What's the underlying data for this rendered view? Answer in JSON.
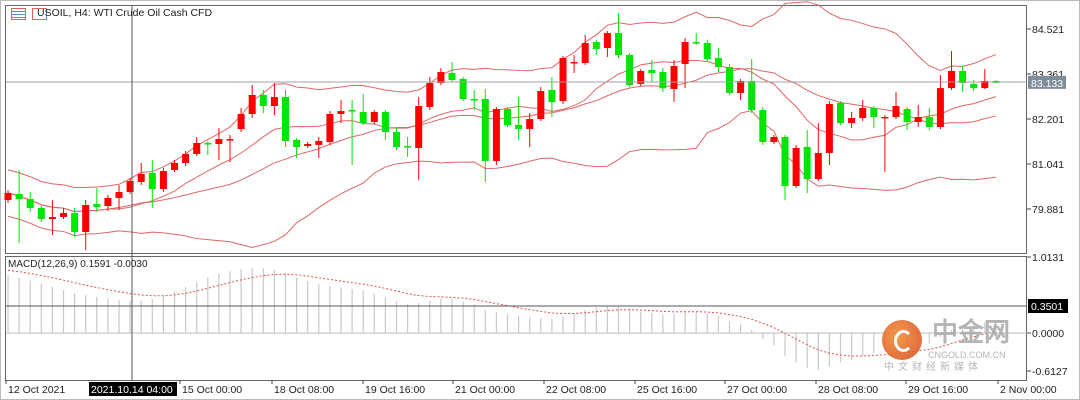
{
  "header": {
    "symbol_title": "USOIL, H4:  WTI Crude Oil Cash CFD"
  },
  "colors": {
    "bull": "#ff0000",
    "bear": "#00e600",
    "bands": "#e06666",
    "macd_hist": "#c8c8c8",
    "signal": "#e05050",
    "grid_line": "#999999",
    "bid_tag": "#7f8c9a"
  },
  "icons": [
    "chart-list-icon",
    "chart-template-icon"
  ],
  "price_axis": {
    "ticks": [
      "84.521",
      "83.361",
      "82.201",
      "81.041",
      "79.881"
    ],
    "bid": "83.133"
  },
  "macd": {
    "label": "MACD(12,26,9) 0.1591 -0.0030",
    "ticks": [
      "1.0131",
      "0.0000",
      "-0.6127"
    ],
    "crosshair_value": "0.3501",
    "main": [
      0.75,
      0.72,
      0.68,
      0.64,
      0.6,
      0.56,
      0.52,
      0.49,
      0.47,
      0.45,
      0.43,
      0.42,
      0.42,
      0.44,
      0.48,
      0.54,
      0.6,
      0.66,
      0.72,
      0.77,
      0.8,
      0.83,
      0.84,
      0.84,
      0.82,
      0.78,
      0.72,
      0.67,
      0.63,
      0.61,
      0.59,
      0.57,
      0.55,
      0.51,
      0.46,
      0.41,
      0.37,
      0.39,
      0.42,
      0.45,
      0.44,
      0.41,
      0.37,
      0.3,
      0.27,
      0.25,
      0.22,
      0.2,
      0.19,
      0.18,
      0.22,
      0.26,
      0.3,
      0.33,
      0.35,
      0.34,
      0.31,
      0.28,
      0.26,
      0.24,
      0.25,
      0.28,
      0.28,
      0.25,
      0.22,
      0.15,
      0.11,
      0.04,
      -0.08,
      -0.16,
      -0.3,
      -0.38,
      -0.45,
      -0.48,
      -0.43,
      -0.38,
      -0.35,
      -0.3,
      -0.26,
      -0.24,
      -0.2,
      -0.18,
      -0.16,
      -0.14,
      -0.05,
      0.04,
      0.09,
      0.12,
      0.14,
      0.1591
    ]
  },
  "time_axis": {
    "labels": [
      "12 Oct 2021",
      "15 Oct 00:00",
      "18 Oct 08:00",
      "19 Oct 16:00",
      "21 Oct 00:00",
      "22 Oct 08:00",
      "25 Oct 16:00",
      "27 Oct 00:00",
      "28 Oct 08:00",
      "29 Oct 16:00",
      "2 Nov 00:00"
    ],
    "crosshair_time": "2021.10.14 04:00"
  },
  "watermark": {
    "brand_cn": "中金网",
    "brand_en": "CNGOLD.COM.CN",
    "slogan": "中文财经新媒体"
  },
  "chart_data": {
    "type": "candlestick",
    "symbol": "USOIL",
    "timeframe": "H4",
    "indicators": [
      "Bollinger Bands",
      "MACD(12,26,9)"
    ],
    "ylim": [
      79.0,
      85.2
    ],
    "ohlc": [
      [
        80.113,
        80.293,
        80.371,
        80.036
      ],
      [
        80.268,
        80.139,
        80.886,
        79.005
      ],
      [
        80.139,
        79.907,
        80.319,
        79.804
      ],
      [
        79.907,
        79.623,
        79.958,
        79.546
      ],
      [
        79.623,
        79.675,
        80.113,
        79.211
      ],
      [
        79.675,
        79.778,
        79.907,
        79.623
      ],
      [
        79.778,
        79.288,
        79.907,
        79.159
      ],
      [
        79.288,
        79.984,
        80.113,
        78.824
      ],
      [
        80.01,
        79.932,
        80.422,
        79.804
      ],
      [
        79.958,
        80.165,
        80.242,
        79.83
      ],
      [
        80.165,
        80.319,
        80.5,
        79.855
      ],
      [
        80.319,
        80.603,
        80.68,
        80.268
      ],
      [
        80.577,
        80.783,
        81.067,
        80.5
      ],
      [
        80.809,
        80.397,
        81.144,
        79.907
      ],
      [
        80.397,
        80.861,
        80.938,
        80.319
      ],
      [
        80.886,
        81.067,
        81.144,
        80.835
      ],
      [
        81.067,
        81.299,
        81.376,
        80.99
      ],
      [
        81.299,
        81.582,
        81.737,
        81.247
      ],
      [
        81.582,
        81.557,
        81.634,
        81.273
      ],
      [
        81.557,
        81.685,
        81.969,
        81.144
      ],
      [
        81.673,
        81.685,
        81.789,
        81.093
      ],
      [
        81.943,
        82.33,
        82.485,
        81.866
      ],
      [
        82.33,
        82.82,
        83.078,
        82.227
      ],
      [
        82.82,
        82.536,
        82.949,
        82.356
      ],
      [
        82.536,
        82.768,
        83.129,
        82.304
      ],
      [
        82.768,
        81.634,
        82.949,
        81.479
      ],
      [
        81.66,
        81.479,
        81.711,
        81.196
      ],
      [
        81.505,
        81.557,
        81.608,
        81.454
      ],
      [
        81.531,
        81.634,
        81.737,
        81.196
      ],
      [
        81.608,
        82.33,
        82.407,
        81.531
      ],
      [
        82.33,
        82.407,
        82.691,
        82.098
      ],
      [
        82.433,
        82.42,
        82.691,
        81.015
      ],
      [
        82.382,
        82.098,
        82.846,
        82.047
      ],
      [
        82.124,
        82.382,
        82.433,
        82.072
      ],
      [
        82.382,
        81.866,
        82.433,
        81.66
      ],
      [
        81.866,
        81.479,
        81.995,
        81.402
      ],
      [
        81.505,
        81.479,
        81.737,
        81.222
      ],
      [
        81.454,
        82.536,
        82.768,
        80.629
      ],
      [
        82.511,
        83.129,
        83.284,
        82.433
      ],
      [
        83.129,
        83.413,
        83.516,
        83.078
      ],
      [
        83.387,
        83.207,
        83.671,
        83.155
      ],
      [
        83.232,
        82.717,
        83.284,
        82.665
      ],
      [
        82.717,
        82.691,
        82.949,
        82.433
      ],
      [
        82.717,
        81.119,
        82.975,
        80.577
      ],
      [
        81.119,
        82.459,
        82.511,
        81.015
      ],
      [
        82.459,
        82.047,
        82.511,
        81.995
      ],
      [
        82.047,
        81.943,
        82.768,
        81.66
      ],
      [
        81.943,
        82.201,
        82.356,
        81.479
      ],
      [
        82.201,
        82.923,
        83.026,
        82.15
      ],
      [
        82.949,
        82.639,
        83.284,
        82.253
      ],
      [
        82.665,
        83.774,
        83.825,
        82.588
      ],
      [
        83.645,
        83.671,
        83.851,
        83.387
      ],
      [
        83.645,
        84.16,
        84.367,
        83.593
      ],
      [
        84.186,
        84.005,
        84.237,
        83.851
      ],
      [
        84.031,
        84.418,
        84.47,
        83.799
      ],
      [
        84.418,
        83.851,
        84.934,
        83.774
      ],
      [
        83.851,
        83.078,
        83.903,
        83.026
      ],
      [
        83.104,
        83.439,
        83.49,
        83.052
      ],
      [
        83.465,
        83.387,
        83.722,
        83.155
      ],
      [
        83.413,
        82.993,
        83.516,
        82.897
      ],
      [
        82.975,
        83.567,
        83.722,
        82.639
      ],
      [
        83.619,
        84.186,
        84.289,
        82.998
      ],
      [
        84.186,
        84.16,
        84.418,
        84.109
      ],
      [
        84.16,
        83.748,
        84.237,
        83.671
      ],
      [
        83.774,
        83.542,
        84.031,
        83.413
      ],
      [
        83.542,
        82.872,
        83.619,
        82.82
      ],
      [
        82.872,
        83.181,
        83.232,
        82.691
      ],
      [
        83.181,
        82.433,
        83.748,
        82.356
      ],
      [
        82.433,
        81.608,
        82.511,
        81.531
      ],
      [
        81.608,
        81.737,
        81.789,
        81.557
      ],
      [
        81.737,
        80.474,
        81.789,
        80.113
      ],
      [
        80.474,
        81.454,
        81.531,
        80.422
      ],
      [
        81.479,
        80.654,
        81.918,
        80.293
      ],
      [
        80.654,
        81.325,
        82.098,
        80.603
      ],
      [
        81.325,
        82.588,
        82.665,
        81.015
      ],
      [
        82.614,
        82.098,
        82.665,
        82.047
      ],
      [
        82.098,
        82.227,
        82.382,
        81.969
      ],
      [
        82.227,
        82.485,
        82.691,
        82.15
      ],
      [
        82.485,
        82.253,
        82.536,
        81.969
      ],
      [
        82.24,
        82.253,
        82.304,
        80.835
      ],
      [
        82.253,
        82.536,
        82.897,
        82.201
      ],
      [
        82.459,
        82.124,
        82.511,
        81.918
      ],
      [
        82.124,
        82.253,
        82.562,
        81.995
      ],
      [
        82.253,
        81.995,
        82.485,
        81.918
      ],
      [
        81.995,
        82.998,
        83.335,
        81.943
      ],
      [
        82.998,
        83.439,
        83.954,
        82.949
      ],
      [
        83.439,
        83.129,
        83.567,
        82.897
      ],
      [
        83.104,
        82.998,
        83.207,
        82.923
      ],
      [
        82.998,
        83.181,
        83.49,
        82.975
      ],
      [
        83.181,
        83.133,
        83.207,
        83.129
      ]
    ]
  }
}
